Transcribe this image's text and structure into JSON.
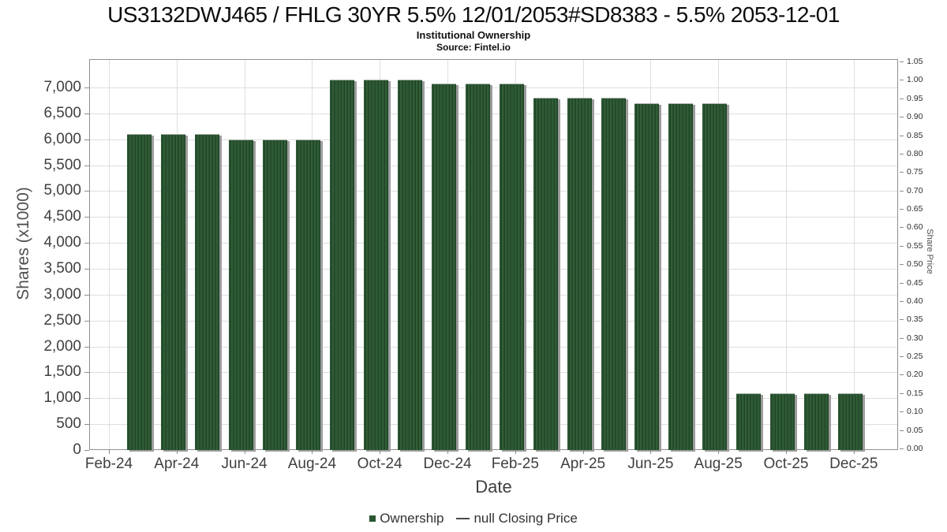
{
  "header": {
    "title": "US3132DWJ465 / FHLG 30YR 5.5% 12/01/2053#SD8383 - 5.5% 2053-12-01",
    "subtitle": "Institutional Ownership",
    "source": "Source: Fintel.io"
  },
  "chart_data": {
    "type": "bar",
    "title": "Institutional Ownership",
    "xlabel": "Date",
    "ylabel": "Shares (x1000)",
    "y2label": "Share Price",
    "months_axis": [
      "Feb-24",
      "Mar-24",
      "Apr-24",
      "May-24",
      "Jun-24",
      "Jul-24",
      "Aug-24",
      "Sep-24",
      "Oct-24",
      "Nov-24",
      "Dec-24",
      "Jan-25",
      "Feb-25",
      "Mar-25",
      "Apr-25",
      "May-25",
      "Jun-25",
      "Jul-25",
      "Aug-25",
      "Sep-25",
      "Oct-25",
      "Nov-25",
      "Dec-25"
    ],
    "x_tick_labels": [
      "Feb-24",
      "Apr-24",
      "Jun-24",
      "Aug-24",
      "Oct-24",
      "Dec-24",
      "Feb-25",
      "Apr-25",
      "Jun-25",
      "Aug-25",
      "Oct-25",
      "Dec-25"
    ],
    "categories": [
      "Mar-24",
      "Apr-24",
      "May-24",
      "Jun-24",
      "Jul-24",
      "Aug-24",
      "Sep-24",
      "Oct-24",
      "Nov-24",
      "Dec-24",
      "Jan-25",
      "Feb-25",
      "Mar-25",
      "Apr-25",
      "May-25",
      "Jun-25",
      "Jul-25",
      "Aug-25",
      "Sep-25",
      "Oct-25",
      "Nov-25",
      "Dec-25"
    ],
    "values": [
      6100,
      6100,
      6100,
      6000,
      6000,
      6000,
      7150,
      7150,
      7150,
      7080,
      7080,
      7080,
      6800,
      6800,
      6800,
      6690,
      6690,
      6690,
      1090,
      1090,
      1090,
      1090
    ],
    "ylim": [
      0,
      7550
    ],
    "y_tick_step": 500,
    "y_tick_max": 7000,
    "y2lim": [
      0,
      1.05
    ],
    "y2_tick_step": 0.05,
    "grid": true,
    "legend_position": "bottom",
    "legend": [
      {
        "label": "Ownership",
        "marker": "square",
        "color": "#2a5631"
      },
      {
        "label": "null Closing Price",
        "marker": "line",
        "color": "#4a4a4a"
      }
    ],
    "bar_color": "#2a5631",
    "gridline_color": "#dedede"
  }
}
